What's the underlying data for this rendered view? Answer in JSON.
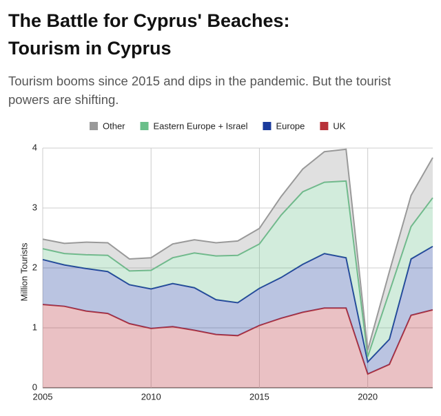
{
  "chart_data": {
    "type": "stacked-area",
    "title_lines": [
      "The Battle for Cyprus' Beaches:",
      "Tourism in Cyprus"
    ],
    "subtitle_lines": [
      "Tourism booms since 2015 and dips in the pandemic.  But the tourist",
      "powers are shifting."
    ],
    "y_label": "Million Tourists",
    "x": [
      2005,
      2006,
      2007,
      2008,
      2009,
      2010,
      2011,
      2012,
      2013,
      2014,
      2015,
      2016,
      2017,
      2018,
      2019,
      2020,
      2021,
      2022,
      2023
    ],
    "series": [
      {
        "name": "Other",
        "color": "#999999",
        "values": [
          0.16,
          0.17,
          0.21,
          0.21,
          0.2,
          0.21,
          0.23,
          0.22,
          0.22,
          0.24,
          0.26,
          0.31,
          0.38,
          0.51,
          0.53,
          0.11,
          0.34,
          0.52,
          0.67
        ]
      },
      {
        "name": "Eastern Europe + Israel",
        "color": "#6abf8a",
        "values": [
          0.18,
          0.19,
          0.23,
          0.27,
          0.23,
          0.31,
          0.43,
          0.58,
          0.73,
          0.79,
          0.74,
          1.04,
          1.21,
          1.19,
          1.28,
          0.09,
          0.79,
          0.54,
          0.81
        ]
      },
      {
        "name": "Europe",
        "color": "#1a3a9c",
        "values": [
          0.75,
          0.69,
          0.71,
          0.7,
          0.65,
          0.66,
          0.72,
          0.71,
          0.58,
          0.55,
          0.62,
          0.68,
          0.8,
          0.91,
          0.84,
          0.2,
          0.42,
          0.94,
          1.06
        ]
      },
      {
        "name": "UK",
        "color": "#b8323a",
        "values": [
          1.39,
          1.36,
          1.28,
          1.24,
          1.07,
          0.99,
          1.02,
          0.96,
          0.89,
          0.87,
          1.04,
          1.16,
          1.26,
          1.33,
          1.33,
          0.23,
          0.39,
          1.21,
          1.3
        ]
      }
    ],
    "xlim": [
      2005,
      2023
    ],
    "xticks": [
      2005,
      2010,
      2015,
      2020
    ],
    "ylim": [
      0,
      4
    ],
    "yticks": [
      0,
      1,
      2,
      3,
      4
    ],
    "grid": true
  }
}
